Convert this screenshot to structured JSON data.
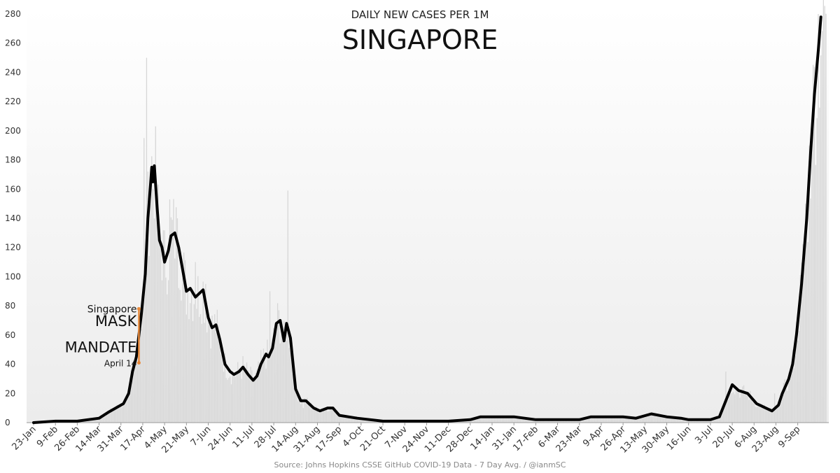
{
  "chart_data": {
    "type": "line",
    "subtitle": "DAILY NEW CASES PER 1M",
    "title": "SINGAPORE",
    "source": "Source: Johns Hopkins CSSE GitHub  COVID-19 Data - 7 Day Avg. / @ianmSC",
    "xlabel": "",
    "ylabel": "",
    "ylim": [
      0,
      280
    ],
    "yticks": [
      0,
      20,
      40,
      60,
      80,
      100,
      120,
      140,
      160,
      180,
      200,
      220,
      240,
      260,
      280
    ],
    "xlim": [
      "2020-01-23",
      "2021-10-01"
    ],
    "x_tick_labels": [
      "23-Jan",
      "9-Feb",
      "26-Feb",
      "14-Mar",
      "31-Mar",
      "17-Apr",
      "4-May",
      "21-May",
      "7-Jun",
      "24-Jun",
      "11-Jul",
      "28-Jul",
      "14-Aug",
      "31-Aug",
      "17-Sep",
      "4-Oct",
      "21-Oct",
      "7-Nov",
      "24-Nov",
      "11-Dec",
      "28-Dec",
      "14-Jan",
      "31-Jan",
      "17-Feb",
      "6-Mar",
      "23-Mar",
      "9-Apr",
      "26-Apr",
      "13-May",
      "30-May",
      "16-Jun",
      "3-Jul",
      "20-Jul",
      "6-Aug",
      "23-Aug",
      "9-Sep"
    ],
    "x_tick_dates": [
      "2020-01-23",
      "2020-02-09",
      "2020-02-26",
      "2020-03-14",
      "2020-03-31",
      "2020-04-17",
      "2020-05-04",
      "2020-05-21",
      "2020-06-07",
      "2020-06-24",
      "2020-07-11",
      "2020-07-28",
      "2020-08-14",
      "2020-08-31",
      "2020-09-17",
      "2020-10-04",
      "2020-10-21",
      "2020-11-07",
      "2020-11-24",
      "2020-12-11",
      "2020-12-28",
      "2021-01-14",
      "2021-01-31",
      "2021-02-17",
      "2021-03-06",
      "2021-03-23",
      "2021-04-09",
      "2021-04-26",
      "2021-05-13",
      "2021-05-30",
      "2021-06-16",
      "2021-07-03",
      "2021-07-20",
      "2021-08-06",
      "2021-08-23",
      "2021-09-09"
    ],
    "grid": false,
    "series": [
      {
        "style": "line",
        "color": "#000000",
        "points": [
          [
            "2020-01-23",
            0
          ],
          [
            "2020-02-09",
            1
          ],
          [
            "2020-02-26",
            1
          ],
          [
            "2020-03-14",
            3
          ],
          [
            "2020-03-21",
            7
          ],
          [
            "2020-03-27",
            10
          ],
          [
            "2020-04-02",
            13
          ],
          [
            "2020-04-06",
            20
          ],
          [
            "2020-04-09",
            35
          ],
          [
            "2020-04-12",
            45
          ],
          [
            "2020-04-16",
            75
          ],
          [
            "2020-04-19",
            102
          ],
          [
            "2020-04-21",
            140
          ],
          [
            "2020-04-23",
            163
          ],
          [
            "2020-04-24",
            175
          ],
          [
            "2020-04-25",
            165
          ],
          [
            "2020-04-26",
            176
          ],
          [
            "2020-04-28",
            150
          ],
          [
            "2020-04-30",
            125
          ],
          [
            "2020-05-02",
            120
          ],
          [
            "2020-05-04",
            110
          ],
          [
            "2020-05-07",
            118
          ],
          [
            "2020-05-09",
            128
          ],
          [
            "2020-05-12",
            130
          ],
          [
            "2020-05-15",
            120
          ],
          [
            "2020-05-19",
            100
          ],
          [
            "2020-05-21",
            90
          ],
          [
            "2020-05-24",
            92
          ],
          [
            "2020-05-28",
            86
          ],
          [
            "2020-06-03",
            91
          ],
          [
            "2020-06-07",
            72
          ],
          [
            "2020-06-10",
            65
          ],
          [
            "2020-06-13",
            67
          ],
          [
            "2020-06-16",
            57
          ],
          [
            "2020-06-20",
            40
          ],
          [
            "2020-06-24",
            35
          ],
          [
            "2020-06-27",
            33
          ],
          [
            "2020-07-01",
            35
          ],
          [
            "2020-07-04",
            38
          ],
          [
            "2020-07-08",
            33
          ],
          [
            "2020-07-12",
            29
          ],
          [
            "2020-07-15",
            32
          ],
          [
            "2020-07-18",
            40
          ],
          [
            "2020-07-22",
            47
          ],
          [
            "2020-07-24",
            45
          ],
          [
            "2020-07-27",
            51
          ],
          [
            "2020-07-30",
            68
          ],
          [
            "2020-08-02",
            70
          ],
          [
            "2020-08-05",
            56
          ],
          [
            "2020-08-07",
            68
          ],
          [
            "2020-08-10",
            58
          ],
          [
            "2020-08-14",
            23
          ],
          [
            "2020-08-18",
            15
          ],
          [
            "2020-08-22",
            15
          ],
          [
            "2020-08-28",
            10
          ],
          [
            "2020-09-02",
            8
          ],
          [
            "2020-09-08",
            10
          ],
          [
            "2020-09-12",
            10
          ],
          [
            "2020-09-17",
            5
          ],
          [
            "2020-10-01",
            3
          ],
          [
            "2020-10-21",
            1
          ],
          [
            "2020-11-07",
            1
          ],
          [
            "2020-11-24",
            1
          ],
          [
            "2020-12-11",
            1
          ],
          [
            "2020-12-28",
            2
          ],
          [
            "2021-01-05",
            4
          ],
          [
            "2021-01-14",
            4
          ],
          [
            "2021-01-31",
            4
          ],
          [
            "2021-02-17",
            2
          ],
          [
            "2021-03-06",
            2
          ],
          [
            "2021-03-23",
            2
          ],
          [
            "2021-04-01",
            4
          ],
          [
            "2021-04-26",
            4
          ],
          [
            "2021-05-06",
            3
          ],
          [
            "2021-05-18",
            6
          ],
          [
            "2021-05-30",
            4
          ],
          [
            "2021-06-10",
            3
          ],
          [
            "2021-06-16",
            2
          ],
          [
            "2021-07-03",
            2
          ],
          [
            "2021-07-10",
            4
          ],
          [
            "2021-07-15",
            15
          ],
          [
            "2021-07-20",
            26
          ],
          [
            "2021-07-25",
            22
          ],
          [
            "2021-08-01",
            20
          ],
          [
            "2021-08-08",
            13
          ],
          [
            "2021-08-15",
            10
          ],
          [
            "2021-08-20",
            8
          ],
          [
            "2021-08-25",
            12
          ],
          [
            "2021-08-28",
            20
          ],
          [
            "2021-09-02",
            30
          ],
          [
            "2021-09-05",
            40
          ],
          [
            "2021-09-08",
            60
          ],
          [
            "2021-09-12",
            95
          ],
          [
            "2021-09-16",
            140
          ],
          [
            "2021-09-19",
            185
          ],
          [
            "2021-09-22",
            225
          ],
          [
            "2021-09-25",
            255
          ],
          [
            "2021-09-27",
            278
          ]
        ]
      },
      {
        "style": "bars",
        "color": "#d6d6d6",
        "points": [
          [
            "2020-04-18",
            195
          ],
          [
            "2020-04-20",
            250
          ],
          [
            "2020-05-08",
            153
          ],
          [
            "2020-05-14",
            140
          ],
          [
            "2020-05-28",
            110
          ],
          [
            "2020-06-05",
            95
          ],
          [
            "2020-07-25",
            90
          ],
          [
            "2020-08-08",
            159
          ],
          [
            "2020-08-20",
            10
          ],
          [
            "2021-07-15",
            35
          ],
          [
            "2021-08-22",
            20
          ],
          [
            "2021-09-05",
            50
          ],
          [
            "2021-09-15",
            150
          ],
          [
            "2021-09-20",
            200
          ],
          [
            "2021-09-25",
            280
          ]
        ]
      }
    ],
    "annotation": {
      "label_top": "Singapore",
      "label_main_1": "MASK",
      "label_main_2": "MANDATE",
      "label_bottom": "April 14",
      "x": "2020-04-14",
      "y_from": 41,
      "y_to": 78,
      "color": "#e8893a"
    }
  }
}
